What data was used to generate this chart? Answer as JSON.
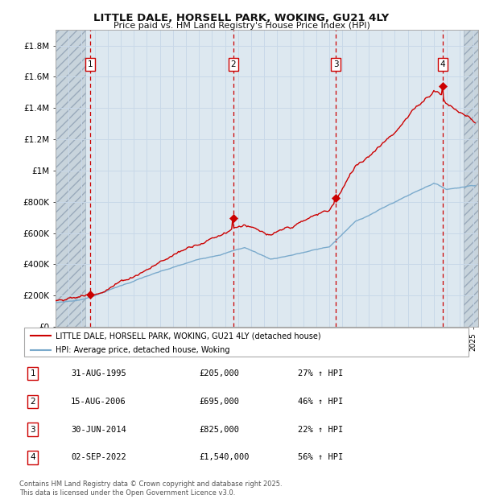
{
  "title": "LITTLE DALE, HORSELL PARK, WOKING, GU21 4LY",
  "subtitle": "Price paid vs. HM Land Registry's House Price Index (HPI)",
  "ylabel_ticks": [
    "£0",
    "£200K",
    "£400K",
    "£600K",
    "£800K",
    "£1M",
    "£1.2M",
    "£1.4M",
    "£1.6M",
    "£1.8M"
  ],
  "ytick_vals": [
    0,
    200000,
    400000,
    600000,
    800000,
    1000000,
    1200000,
    1400000,
    1600000,
    1800000
  ],
  "ylim": [
    0,
    1900000
  ],
  "xlim_start": 1993.0,
  "xlim_end": 2025.4,
  "hatch_start": 1993.0,
  "hatch_end": 1995.3,
  "hatch_right_start": 2024.3,
  "hatch_right_end": 2025.4,
  "sale_dates": [
    1995.664,
    2006.621,
    2014.496,
    2022.671
  ],
  "sale_prices": [
    205000,
    695000,
    825000,
    1540000
  ],
  "sale_labels": [
    "1",
    "2",
    "3",
    "4"
  ],
  "red_line_color": "#cc0000",
  "blue_line_color": "#7aaacc",
  "grid_color": "#c8d8e8",
  "dashed_line_color": "#cc0000",
  "legend_label_red": "LITTLE DALE, HORSELL PARK, WOKING, GU21 4LY (detached house)",
  "legend_label_blue": "HPI: Average price, detached house, Woking",
  "table_rows": [
    [
      "1",
      "31-AUG-1995",
      "£205,000",
      "27% ↑ HPI"
    ],
    [
      "2",
      "15-AUG-2006",
      "£695,000",
      "46% ↑ HPI"
    ],
    [
      "3",
      "30-JUN-2014",
      "£825,000",
      "22% ↑ HPI"
    ],
    [
      "4",
      "02-SEP-2022",
      "£1,540,000",
      "56% ↑ HPI"
    ]
  ],
  "footer": "Contains HM Land Registry data © Crown copyright and database right 2025.\nThis data is licensed under the Open Government Licence v3.0.",
  "background_color": "#ffffff",
  "plot_bg_color": "#dde8f0"
}
